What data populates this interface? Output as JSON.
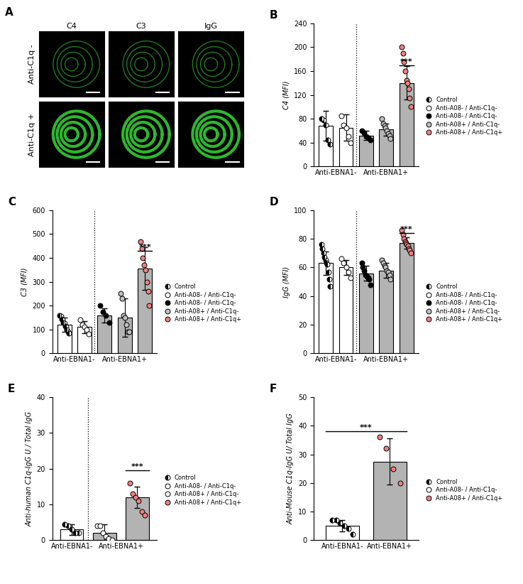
{
  "chart_data": [
    {
      "type": "image_grid",
      "panel_label": "A",
      "columns": [
        "C4",
        "C3",
        "IgG"
      ],
      "rows": [
        "Anti-C1q -",
        "Anti-C1q +"
      ]
    },
    {
      "type": "bar_scatter",
      "panel_label": "B",
      "y_label": "C4 (MFI)",
      "ylim": [
        0,
        240
      ],
      "yticks": [
        0,
        40,
        80,
        120,
        160,
        200,
        240
      ],
      "legend": "right",
      "legend_entries": [
        {
          "name": "Control",
          "color": "#000000",
          "marker": "half"
        },
        {
          "name": "Anti-A08- / Anti-C1q-",
          "color": "#ffffff",
          "marker": "circle"
        },
        {
          "name": "Anti-A08- / Anti-C1q-",
          "color": "#000000",
          "marker": "circle"
        },
        {
          "name": "Anti-A08+ / Anti-C1q-",
          "color": "#bfbfbf",
          "marker": "circle"
        },
        {
          "name": "Anti-A08+ / Anti-C1q+",
          "color": "#f08080",
          "marker": "circle"
        }
      ],
      "bars": [
        {
          "color": "#ffffff",
          "point_color": "#000000",
          "marker": "half",
          "value": 68,
          "error": 25,
          "points": [
            80,
            78,
            70,
            45,
            37
          ]
        },
        {
          "color": "#ffffff",
          "point_color": "#ffffff",
          "marker": "circle",
          "value": 65,
          "error": 22,
          "points": [
            85,
            70,
            65,
            50,
            40
          ]
        },
        {
          "color": "#b3b3b3",
          "point_color": "#000000",
          "marker": "circle",
          "value": 52,
          "error": 8,
          "points": [
            60,
            56,
            50,
            48,
            45
          ]
        },
        {
          "color": "#b3b3b3",
          "point_color": "#bfbfbf",
          "marker": "circle",
          "value": 62,
          "error": 10,
          "points": [
            80,
            72,
            68,
            65,
            60,
            55,
            52,
            47
          ]
        },
        {
          "color": "#b3b3b3",
          "point_color": "#f08080",
          "marker": "circle",
          "value": 140,
          "error": 28,
          "points": [
            200,
            190,
            175,
            160,
            145,
            140,
            130,
            115,
            100
          ]
        }
      ],
      "groups": [
        {
          "label": "Anti-EBNA1-",
          "size": 2
        },
        {
          "label": "Anti-EBNA1+",
          "size": 3
        }
      ],
      "divider": true,
      "significance": {
        "label": "***",
        "y": 170,
        "from": 4,
        "to": 4
      }
    },
    {
      "type": "bar_scatter",
      "panel_label": "C",
      "y_label": "C3 (MFI)",
      "ylim": [
        0,
        600
      ],
      "yticks": [
        0,
        100,
        200,
        300,
        400,
        500,
        600
      ],
      "legend": "right",
      "legend_entries": [
        {
          "name": "Control",
          "color": "#000000",
          "marker": "half"
        },
        {
          "name": "Anti-A08- / Anti-C1q-",
          "color": "#ffffff",
          "marker": "circle"
        },
        {
          "name": "Anti-A08- / Anti-C1q-",
          "color": "#000000",
          "marker": "circle"
        },
        {
          "name": "Anti-A08+ / Anti-C1q-",
          "color": "#bfbfbf",
          "marker": "circle"
        },
        {
          "name": "Anti-A08+ / Anti-C1q+",
          "color": "#f08080",
          "marker": "circle"
        }
      ],
      "bars": [
        {
          "color": "#ffffff",
          "point_color": "#000000",
          "marker": "half",
          "value": 120,
          "error": 30,
          "points": [
            160,
            155,
            145,
            140,
            130,
            125,
            115,
            110,
            100,
            90,
            85
          ]
        },
        {
          "color": "#ffffff",
          "point_color": "#ffffff",
          "marker": "circle",
          "value": 110,
          "error": 25,
          "points": [
            140,
            120,
            110,
            100,
            80
          ]
        },
        {
          "color": "#b3b3b3",
          "point_color": "#000000",
          "marker": "circle",
          "value": 160,
          "error": 30,
          "points": [
            200,
            175,
            160,
            130
          ]
        },
        {
          "color": "#b3b3b3",
          "point_color": "#bfbfbf",
          "marker": "circle",
          "value": 150,
          "error": 80,
          "points": [
            250,
            230,
            160,
            150,
            120,
            90,
            90
          ]
        },
        {
          "color": "#b3b3b3",
          "point_color": "#f08080",
          "marker": "circle",
          "value": 355,
          "error": 90,
          "points": [
            470,
            440,
            400,
            370,
            350,
            300,
            260,
            200
          ]
        }
      ],
      "groups": [
        {
          "label": "Anti-EBNA1-",
          "size": 2
        },
        {
          "label": "Anti-EBNA1+",
          "size": 3
        }
      ],
      "divider": true,
      "significance": {
        "label": "***",
        "y": 430,
        "from": 4,
        "to": 4
      }
    },
    {
      "type": "bar_scatter",
      "panel_label": "D",
      "y_label": "IgG (MFI)",
      "ylim": [
        0,
        100
      ],
      "yticks": [
        0,
        20,
        40,
        60,
        80,
        100
      ],
      "legend": "right",
      "legend_entries": [
        {
          "name": "Control",
          "color": "#000000",
          "marker": "half"
        },
        {
          "name": "Anti-A08- / Anti-C1q-",
          "color": "#ffffff",
          "marker": "circle"
        },
        {
          "name": "Anti-A08- / Anti-C1q-",
          "color": "#000000",
          "marker": "circle"
        },
        {
          "name": "Anti-A08+ / Anti-C1q-",
          "color": "#bfbfbf",
          "marker": "circle"
        },
        {
          "name": "Anti-A08+ / Anti-C1q+",
          "color": "#f08080",
          "marker": "circle"
        }
      ],
      "bars": [
        {
          "color": "#ffffff",
          "point_color": "#000000",
          "marker": "half",
          "value": 63,
          "error": 8,
          "points": [
            76,
            73,
            70,
            67,
            65,
            63,
            62,
            57,
            52,
            47
          ]
        },
        {
          "color": "#ffffff",
          "point_color": "#ffffff",
          "marker": "circle",
          "value": 60,
          "error": 5,
          "points": [
            66,
            63,
            60,
            57,
            53
          ]
        },
        {
          "color": "#b3b3b3",
          "point_color": "#000000",
          "marker": "circle",
          "value": 56,
          "error": 5,
          "points": [
            63,
            60,
            58,
            55,
            54,
            53,
            52,
            48
          ]
        },
        {
          "color": "#b3b3b3",
          "point_color": "#bfbfbf",
          "marker": "circle",
          "value": 58,
          "error": 5,
          "points": [
            65,
            63,
            61,
            60,
            58,
            57,
            55,
            52
          ]
        },
        {
          "color": "#b3b3b3",
          "point_color": "#f08080",
          "marker": "circle",
          "value": 77,
          "error": 4,
          "points": [
            86,
            83,
            80,
            78,
            77,
            76,
            75,
            73,
            72,
            70
          ]
        }
      ],
      "groups": [
        {
          "label": "Anti-EBNA1-",
          "size": 2
        },
        {
          "label": "Anti-EBNA1+",
          "size": 3
        }
      ],
      "divider": true,
      "significance": {
        "label": "***",
        "y": 84,
        "from": 4,
        "to": 4
      }
    },
    {
      "type": "bar_scatter",
      "panel_label": "E",
      "y_label": "Anti-human C1q-IgG U / Total IgG",
      "ylim": [
        0,
        40
      ],
      "yticks": [
        0,
        10,
        20,
        30,
        40
      ],
      "legend": "right",
      "legend_entries": [
        {
          "name": "Control",
          "color": "#000000",
          "marker": "half"
        },
        {
          "name": "Anti-A08- / Anti-C1q-",
          "color": "#ffffff",
          "marker": "circle"
        },
        {
          "name": "Anti-A08+ / Anti-C1q-",
          "color": "#ffffff",
          "marker": "circle"
        },
        {
          "name": "Anti-A08+ / Anti-C1q+",
          "color": "#f08080",
          "marker": "circle"
        }
      ],
      "bars": [
        {
          "color": "#ffffff",
          "point_color": "#000000",
          "marker": "half",
          "value": 3,
          "error": 1.5,
          "points": [
            4.5,
            4,
            3,
            2,
            2
          ]
        },
        {
          "color": "#b3b3b3",
          "point_color": "#ffffff",
          "marker": "circle",
          "value": 2,
          "error": 2.5,
          "points": [
            4,
            4,
            2,
            1,
            0.5,
            0
          ]
        },
        {
          "color": "#b3b3b3",
          "point_color": "#f08080",
          "marker": "circle",
          "value": 12,
          "error": 3,
          "points": [
            16,
            13,
            12,
            11,
            8,
            7
          ]
        }
      ],
      "groups": [
        {
          "label": "Anti-EBNA1-",
          "size": 1
        },
        {
          "label": "Anti-EBNA1+",
          "size": 2
        }
      ],
      "divider": true,
      "significance": {
        "label": "***",
        "y": 19.5,
        "from": 2,
        "to": 2
      }
    },
    {
      "type": "bar_scatter",
      "panel_label": "F",
      "y_label": "Anti-Mouse C1q-IgG U/ Total IgG",
      "ylim": [
        0,
        50
      ],
      "yticks": [
        0,
        10,
        20,
        30,
        40,
        50
      ],
      "legend": "right",
      "legend_entries": [
        {
          "name": "Control",
          "color": "#000000",
          "marker": "half"
        },
        {
          "name": "Anti-A08- / Anti-C1q-",
          "color": "#ffffff",
          "marker": "circle"
        },
        {
          "name": "Anti-A08+ / Anti-C1q+",
          "color": "#f08080",
          "marker": "circle"
        }
      ],
      "bars": [
        {
          "color": "#ffffff",
          "point_color": "#ffffff",
          "marker": "half",
          "value": 5,
          "error": 2,
          "points": [
            7,
            7,
            6,
            5,
            4,
            2
          ]
        },
        {
          "color": "#b3b3b3",
          "point_color": "#f08080",
          "marker": "circle",
          "value": 27.5,
          "error": 8,
          "points": [
            36,
            32,
            25,
            20
          ]
        }
      ],
      "groups": [
        {
          "label": "Anti-EBNA1-",
          "size": 1
        },
        {
          "label": "Anti-EBNA1+",
          "size": 1
        }
      ],
      "divider": false,
      "significance": {
        "label": "***",
        "y": 38,
        "from": 0,
        "to": 1
      }
    }
  ]
}
